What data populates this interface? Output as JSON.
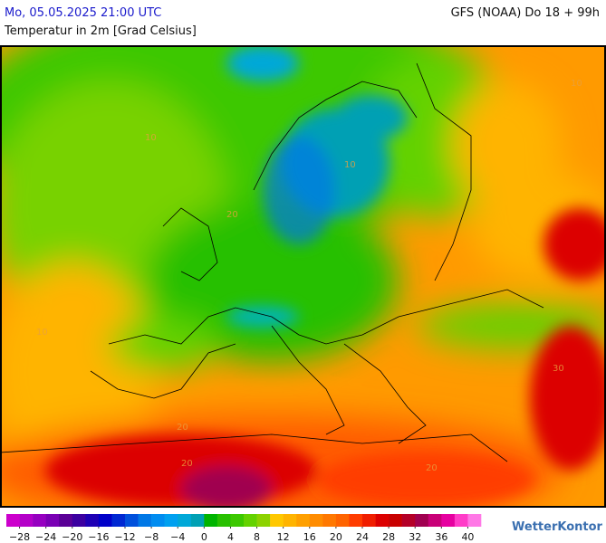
{
  "header": {
    "date": "Mo, 05.05.2025 21:00 UTC",
    "model": "GFS (NOAA) Do 18 + 99h",
    "title": "Temperatur in 2m [Grad Celsius]"
  },
  "map": {
    "contour_labels": [
      "10",
      "10",
      "10",
      "10",
      "20",
      "20",
      "20",
      "20",
      "30"
    ]
  },
  "colorbar": {
    "colors": [
      "#cc00cc",
      "#b400c8",
      "#9600c0",
      "#7a00b4",
      "#5a0096",
      "#3c00a0",
      "#1e00b4",
      "#0000c8",
      "#0028d2",
      "#0050dc",
      "#0078e6",
      "#008cf0",
      "#00a0f0",
      "#00a8d8",
      "#00a0b4",
      "#00b400",
      "#28c000",
      "#3cc800",
      "#64d200",
      "#8cd200",
      "#ffc800",
      "#ffb400",
      "#ffa000",
      "#ff8c00",
      "#ff7800",
      "#ff6400",
      "#ff3c00",
      "#f01e00",
      "#dc0000",
      "#c80000",
      "#b40028",
      "#a00050",
      "#c80078",
      "#e600a0",
      "#ff3cc8",
      "#ff78e6"
    ],
    "range": [
      -30,
      42
    ],
    "ticks": [
      {
        "value": -28,
        "label": "−28"
      },
      {
        "value": -24,
        "label": "−24"
      },
      {
        "value": -20,
        "label": "−20"
      },
      {
        "value": -16,
        "label": "−16"
      },
      {
        "value": -12,
        "label": "−12"
      },
      {
        "value": -8,
        "label": "−8"
      },
      {
        "value": -4,
        "label": "−4"
      },
      0,
      4,
      8,
      12,
      16,
      20,
      24,
      28,
      32,
      36,
      40
    ]
  },
  "brand": "WetterKontor"
}
